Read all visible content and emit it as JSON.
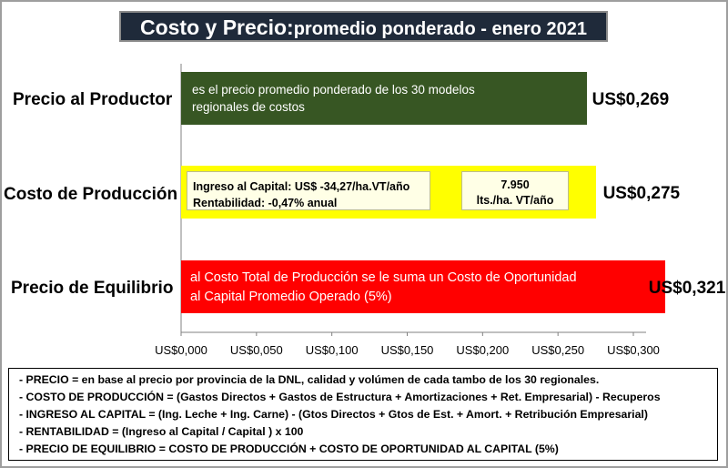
{
  "title": {
    "main": "Costo  y Precio:",
    "sub": " promedio ponderado  - enero 2021"
  },
  "chart_data": {
    "type": "bar",
    "orientation": "horizontal",
    "categories": [
      "Precio al Productor",
      "Costo de Producción",
      "Precio de Equilibrio"
    ],
    "values": [
      0.269,
      0.275,
      0.321
    ],
    "value_labels": [
      "US$0,269",
      "US$0,275",
      "US$0,321"
    ],
    "colors": [
      "#375623",
      "#ffff00",
      "#ff0000"
    ],
    "xlim": [
      0,
      0.3
    ],
    "x_ticks": [
      0,
      0.05,
      0.1,
      0.15,
      0.2,
      0.25,
      0.3
    ],
    "x_tick_labels": [
      "US$0,000",
      "US$0,050",
      "US$0,100",
      "US$0,150",
      "US$0,200",
      "US$0,250",
      "US$0,300"
    ],
    "grid": false,
    "bar_texts": [
      [
        "es el precio promedio ponderado  de los 30 modelos",
        "regionales de costos"
      ],
      [],
      [
        "al Costo Total de Producción se le suma un Costo de Oportunidad",
        "al Capital Promedio Operado (5%)"
      ]
    ],
    "annotations": {
      "capital": [
        "Ingreso al Capital: US$  -34,27/ha.VT/año",
        "Rentabilidad:  -0,47% anual"
      ],
      "litros": [
        "7.950",
        "lts./ha.  VT/año"
      ]
    }
  },
  "notes": [
    "- PRECIO  = en base al precio por provincia de la DNL, calidad  y volúmen de cada tambo de los 30 regionales.",
    "- COSTO DE PRODUCCIÓN  = (Gastos Directos + Gastos de Estructura + Amortizaciones + Ret. Empresarial)  - Recuperos",
    "- INGRESO  AL CAPITAL = (Ing. Leche + Ing. Carne)  - (Gtos Directos + Gtos de Est. + Amort. + Retribución Empresarial)",
    "- RENTABILIDAD  = (Ingreso al Capital  / Capital ) x 100",
    "- PRECIO  DE EQUILIBRIO  = COSTO DE PRODUCCIÓN  + COSTO DE OPORTUNIDAD  AL CAPITAL (5%)"
  ]
}
